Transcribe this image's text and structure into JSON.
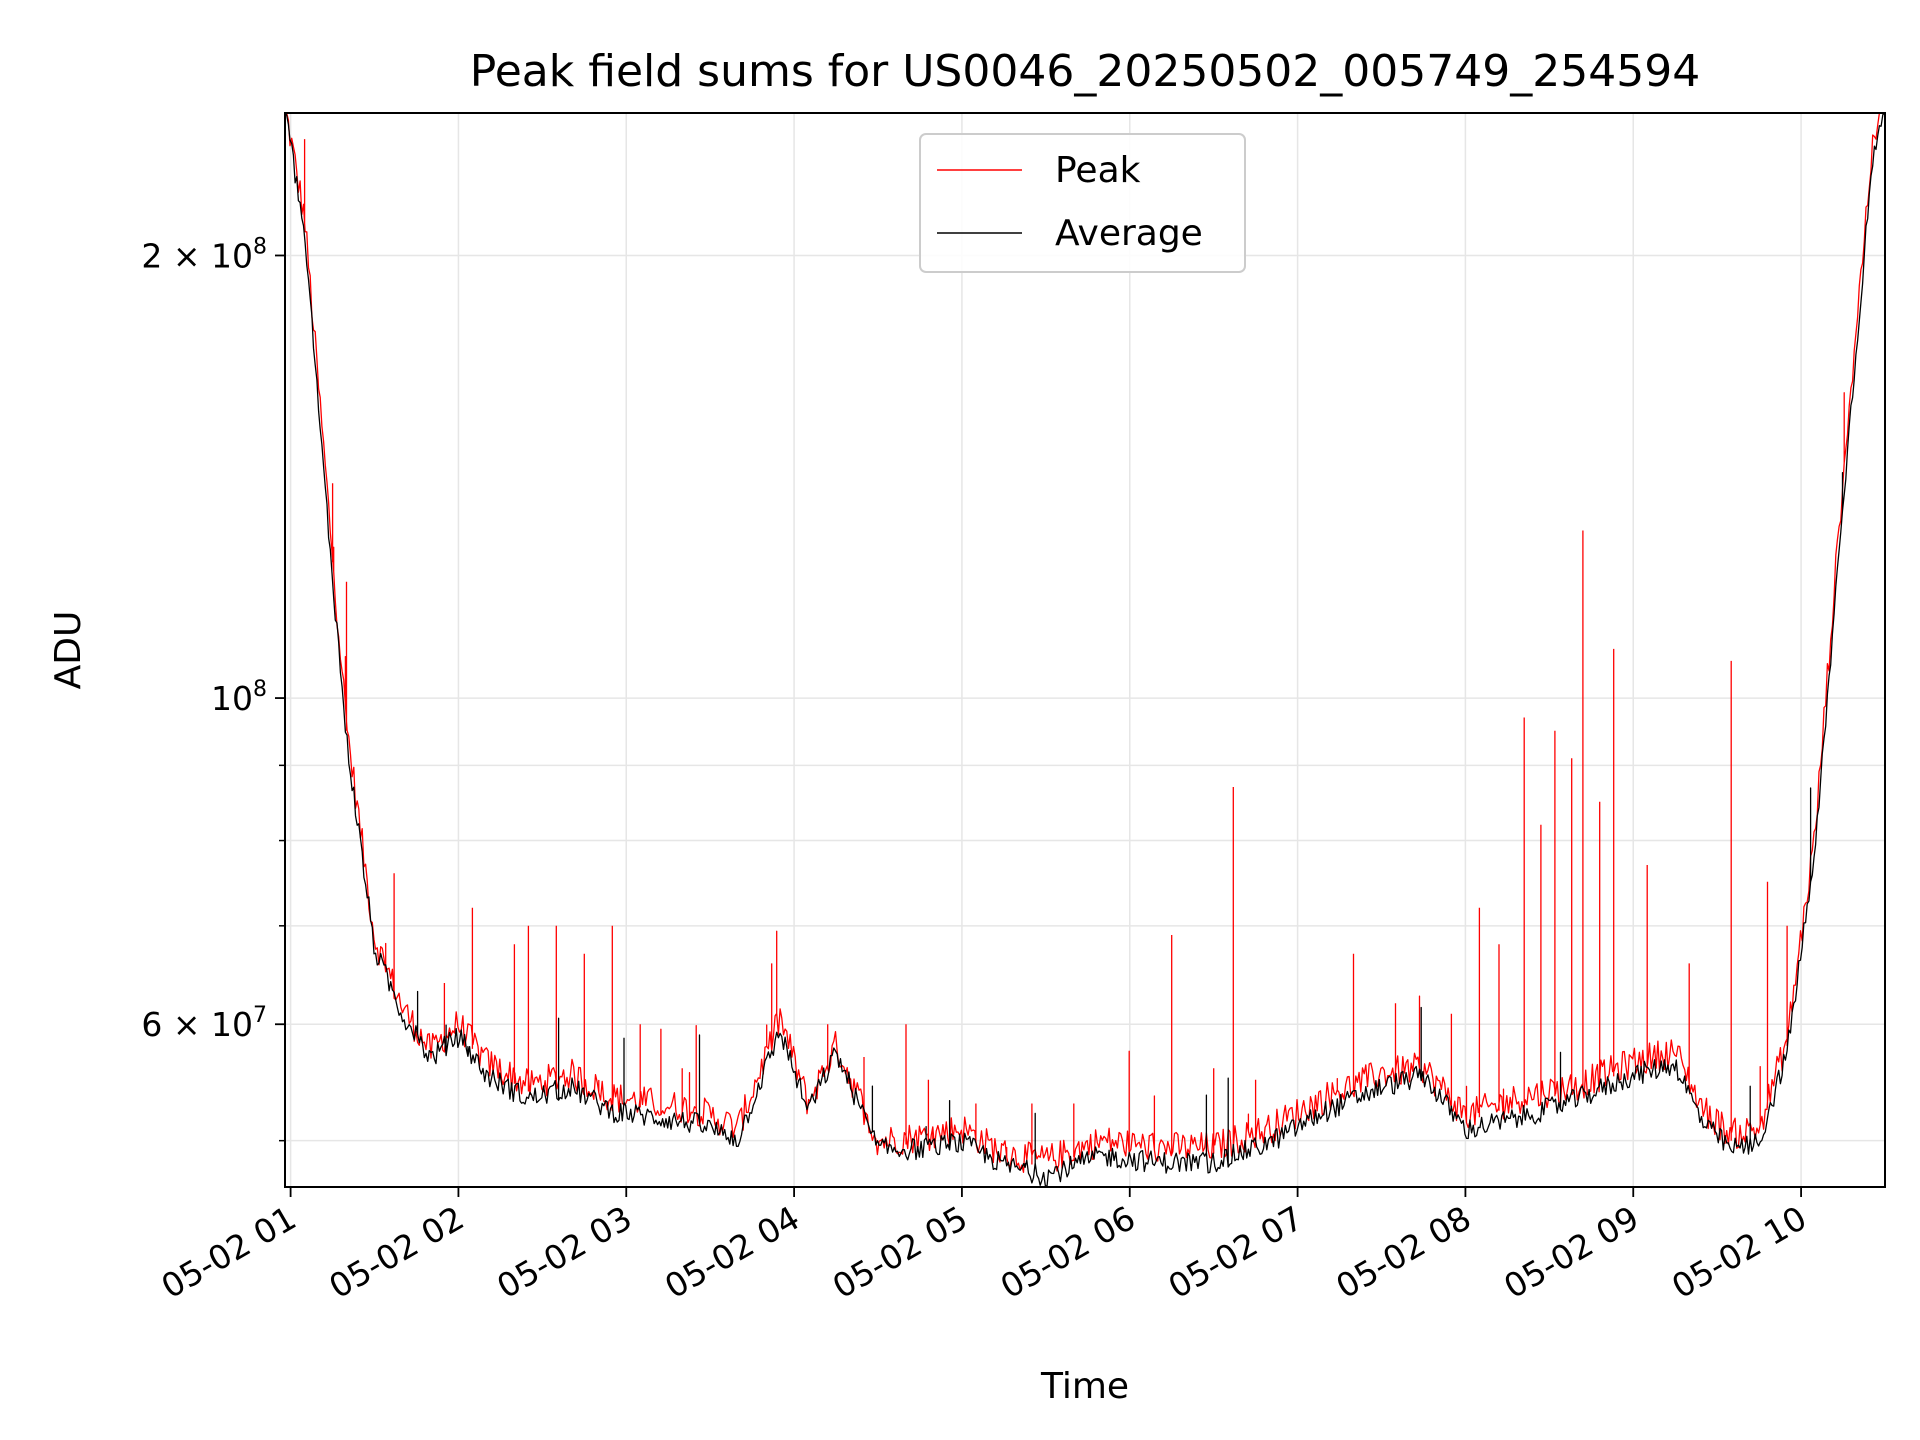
{
  "chart_data": {
    "type": "line",
    "title": "Peak field sums for US0046_20250502_005749_254594",
    "xlabel": "Time",
    "ylabel": "ADU",
    "x_range": [
      "2025-05-02 00:58",
      "2025-05-02 10:30"
    ],
    "x_ticks": [
      "05-02 01",
      "05-02 02",
      "05-02 03",
      "05-02 04",
      "05-02 05",
      "05-02 06",
      "05-02 07",
      "05-02 08",
      "05-02 09",
      "05-02 10"
    ],
    "y_scale": "log",
    "ylim": [
      46500000,
      250000000
    ],
    "y_ticks_major": [
      {
        "value": 60000000,
        "mantissa": "6",
        "exponent": "7"
      },
      {
        "value": 100000000,
        "mantissa": "",
        "exponent": "8"
      },
      {
        "value": 200000000,
        "mantissa": "2",
        "exponent": "8"
      }
    ],
    "y_ticks_minor": [
      50000000,
      70000000,
      80000000,
      90000000,
      300000000,
      400000000
    ],
    "grid": true,
    "legend_position": "top-center",
    "series": [
      {
        "name": "Peak",
        "color": "#ff0000",
        "points": [
          [
            "00:58",
            250000000
          ],
          [
            "01:05",
            210000000
          ],
          [
            "01:12",
            145000000
          ],
          [
            "01:20",
            95000000
          ],
          [
            "01:30",
            68000000
          ],
          [
            "01:40",
            61000000
          ],
          [
            "01:50",
            57000000
          ],
          [
            "02:00",
            59500000
          ],
          [
            "02:10",
            56000000
          ],
          [
            "02:25",
            54000000
          ],
          [
            "02:40",
            55000000
          ],
          [
            "02:55",
            53000000
          ],
          [
            "03:10",
            52500000
          ],
          [
            "03:25",
            52000000
          ],
          [
            "03:40",
            50500000
          ],
          [
            "03:55",
            60000000
          ],
          [
            "04:05",
            52500000
          ],
          [
            "04:15",
            57500000
          ],
          [
            "04:30",
            49500000
          ],
          [
            "04:45",
            49800000
          ],
          [
            "05:00",
            50500000
          ],
          [
            "05:15",
            48500000
          ],
          [
            "05:30",
            48000000
          ],
          [
            "05:50",
            49500000
          ],
          [
            "06:10",
            49000000
          ],
          [
            "06:30",
            49000000
          ],
          [
            "06:50",
            50500000
          ],
          [
            "07:10",
            53000000
          ],
          [
            "07:30",
            55000000
          ],
          [
            "07:45",
            55500000
          ],
          [
            "08:00",
            51500000
          ],
          [
            "08:20",
            53000000
          ],
          [
            "08:40",
            54000000
          ],
          [
            "09:00",
            56000000
          ],
          [
            "09:15",
            57000000
          ],
          [
            "09:25",
            52000000
          ],
          [
            "09:35",
            50000000
          ],
          [
            "09:45",
            50500000
          ],
          [
            "09:55",
            58000000
          ],
          [
            "10:05",
            80000000
          ],
          [
            "10:15",
            140000000
          ],
          [
            "10:25",
            230000000
          ],
          [
            "10:30",
            260000000
          ]
        ],
        "spikes": [
          [
            "01:05",
            240000000
          ],
          [
            "01:15",
            140000000
          ],
          [
            "01:20",
            120000000
          ],
          [
            "01:37",
            76000000
          ],
          [
            "01:55",
            64000000
          ],
          [
            "02:05",
            72000000
          ],
          [
            "02:20",
            68000000
          ],
          [
            "02:25",
            70000000
          ],
          [
            "02:35",
            70000000
          ],
          [
            "02:45",
            67000000
          ],
          [
            "02:55",
            70000000
          ],
          [
            "03:05",
            60000000
          ],
          [
            "03:20",
            56000000
          ],
          [
            "03:52",
            66000000
          ],
          [
            "03:55",
            60000000
          ],
          [
            "04:12",
            60000000
          ],
          [
            "04:25",
            57000000
          ],
          [
            "04:40",
            60000000
          ],
          [
            "04:48",
            55000000
          ],
          [
            "05:05",
            53000000
          ],
          [
            "05:25",
            53000000
          ],
          [
            "05:40",
            53000000
          ],
          [
            "06:15",
            69000000
          ],
          [
            "06:30",
            56000000
          ],
          [
            "06:37",
            87000000
          ],
          [
            "06:45",
            55000000
          ],
          [
            "07:20",
            67000000
          ],
          [
            "07:35",
            62000000
          ],
          [
            "07:55",
            61000000
          ],
          [
            "08:05",
            72000000
          ],
          [
            "08:12",
            68000000
          ],
          [
            "08:21",
            97000000
          ],
          [
            "08:27",
            82000000
          ],
          [
            "08:32",
            95000000
          ],
          [
            "08:38",
            91000000
          ],
          [
            "08:42",
            130000000
          ],
          [
            "08:48",
            85000000
          ],
          [
            "08:53",
            108000000
          ],
          [
            "09:05",
            77000000
          ],
          [
            "09:20",
            66000000
          ],
          [
            "09:35",
            106000000
          ],
          [
            "09:48",
            75000000
          ],
          [
            "09:55",
            70000000
          ]
        ]
      },
      {
        "name": "Average",
        "color": "#000000",
        "points": [
          [
            "00:58",
            250000000
          ],
          [
            "01:05",
            205000000
          ],
          [
            "01:12",
            140000000
          ],
          [
            "01:20",
            93000000
          ],
          [
            "01:30",
            67000000
          ],
          [
            "01:40",
            60500000
          ],
          [
            "01:50",
            56500000
          ],
          [
            "02:00",
            58500000
          ],
          [
            "02:10",
            55000000
          ],
          [
            "02:25",
            53000000
          ],
          [
            "02:40",
            54000000
          ],
          [
            "02:55",
            52000000
          ],
          [
            "03:10",
            51500000
          ],
          [
            "03:25",
            51000000
          ],
          [
            "03:40",
            49800000
          ],
          [
            "03:55",
            59000000
          ],
          [
            "04:05",
            52000000
          ],
          [
            "04:15",
            57000000
          ],
          [
            "04:30",
            49000000
          ],
          [
            "04:45",
            49000000
          ],
          [
            "05:00",
            49500000
          ],
          [
            "05:15",
            47800000
          ],
          [
            "05:30",
            47000000
          ],
          [
            "05:50",
            48500000
          ],
          [
            "06:10",
            48000000
          ],
          [
            "06:30",
            48000000
          ],
          [
            "06:50",
            49500000
          ],
          [
            "07:10",
            52000000
          ],
          [
            "07:30",
            54000000
          ],
          [
            "07:45",
            55000000
          ],
          [
            "08:00",
            50500000
          ],
          [
            "08:20",
            51500000
          ],
          [
            "08:40",
            53000000
          ],
          [
            "09:00",
            55000000
          ],
          [
            "09:15",
            56000000
          ],
          [
            "09:25",
            51000000
          ],
          [
            "09:35",
            49000000
          ],
          [
            "09:45",
            49500000
          ],
          [
            "09:55",
            57000000
          ],
          [
            "10:05",
            78000000
          ],
          [
            "10:15",
            135000000
          ],
          [
            "10:25",
            225000000
          ],
          [
            "10:30",
            255000000
          ]
        ]
      }
    ]
  }
}
